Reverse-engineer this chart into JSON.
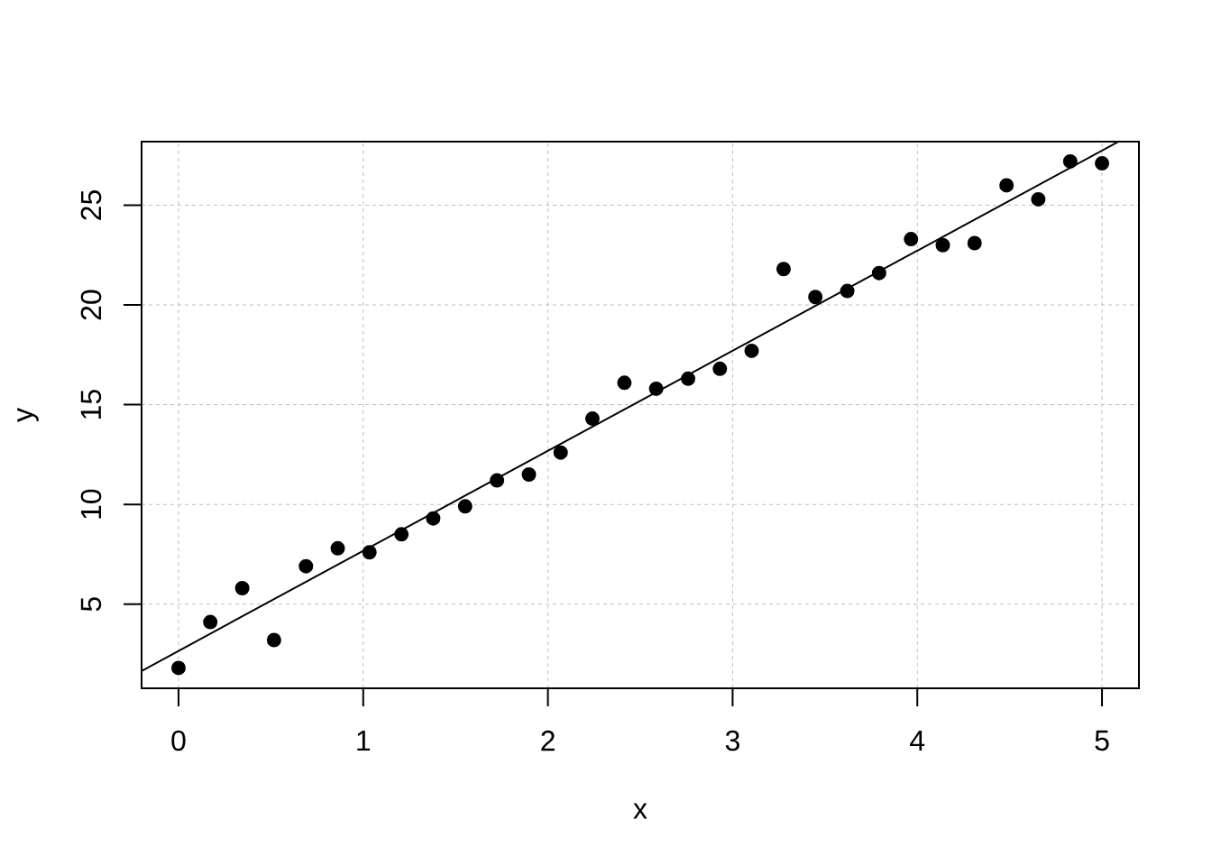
{
  "chart_data": {
    "type": "scatter",
    "xlabel": "x",
    "ylabel": "y",
    "xlim": [
      -0.2,
      5.2
    ],
    "ylim": [
      0.78,
      28.19
    ],
    "xticks": [
      0,
      1,
      2,
      3,
      4,
      5
    ],
    "yticks": [
      5,
      10,
      15,
      20,
      25
    ],
    "grid": true,
    "marker": "circle",
    "series": [
      {
        "color": "#000000",
        "x": [
          0,
          0.172,
          0.345,
          0.517,
          0.69,
          0.862,
          1.034,
          1.207,
          1.379,
          1.552,
          1.724,
          1.897,
          2.069,
          2.241,
          2.414,
          2.586,
          2.759,
          2.931,
          3.103,
          3.276,
          3.448,
          3.621,
          3.793,
          3.966,
          4.138,
          4.31,
          4.483,
          4.655,
          4.828,
          5.0
        ],
        "values": [
          1.8,
          4.1,
          5.8,
          3.2,
          6.9,
          7.8,
          7.6,
          8.5,
          9.3,
          9.9,
          11.2,
          11.5,
          12.6,
          14.3,
          16.1,
          15.8,
          16.3,
          16.8,
          17.7,
          21.8,
          20.4,
          20.7,
          21.6,
          23.3,
          23.0,
          23.1,
          26.0,
          25.3,
          27.2,
          27.1
        ]
      },
      {
        "type": "line",
        "color": "#000000",
        "marker": "none",
        "x": [
          -0.2,
          5.09
        ],
        "values": [
          1.65,
          28.19
        ]
      }
    ]
  }
}
